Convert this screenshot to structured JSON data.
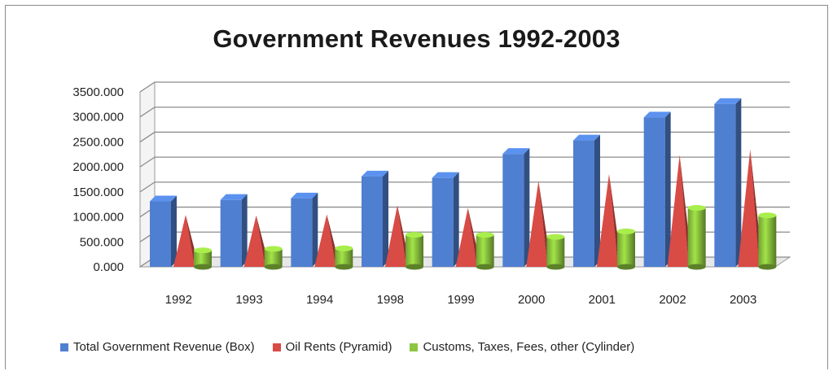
{
  "chart_data": {
    "type": "bar",
    "title": "Government Revenues 1992-2003",
    "categories": [
      "1992",
      "1993",
      "1994",
      "1998",
      "1999",
      "2000",
      "2001",
      "2002",
      "2003"
    ],
    "series": [
      {
        "name": "Total Government Revenue (Box)",
        "color": "#4F7FD0",
        "values": [
          1310,
          1340,
          1370,
          1810,
          1780,
          2260,
          2530,
          2990,
          3260
        ]
      },
      {
        "name": "Oil Rents (Pyramid)",
        "color": "#D94B45",
        "values": [
          1040,
          1030,
          1050,
          1230,
          1180,
          1720,
          1860,
          2240,
          2350
        ]
      },
      {
        "name": "Customs, Taxes, Fees, other (Cylinder)",
        "color": "#8DC63F",
        "values": [
          330,
          360,
          370,
          640,
          640,
          600,
          710,
          1180,
          1030
        ]
      }
    ],
    "yticks": [
      "0.000",
      "500.000",
      "1000.000",
      "1500.000",
      "2000.000",
      "2500.000",
      "3000.000",
      "3500.000"
    ],
    "ylim": [
      0,
      3500
    ],
    "grid": true,
    "legend": "bottom"
  }
}
